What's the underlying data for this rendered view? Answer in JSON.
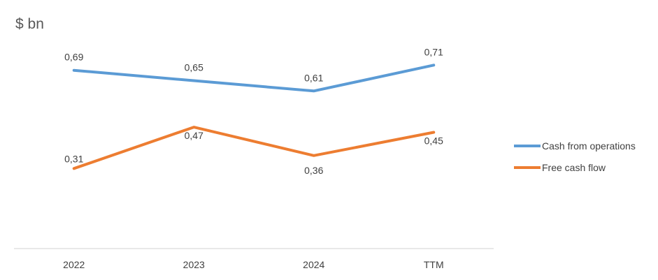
{
  "chart_data": {
    "type": "line",
    "unit_label": "$ bn",
    "categories": [
      "2022",
      "2023",
      "2024",
      "TTM"
    ],
    "series": [
      {
        "name": "Cash from operations",
        "color": "#5b9bd5",
        "values": [
          0.69,
          0.65,
          0.61,
          0.71
        ],
        "labels": [
          "0,69",
          "0,65",
          "0,61",
          "0,71"
        ]
      },
      {
        "name": "Free cash flow",
        "color": "#ed7d31",
        "values": [
          0.31,
          0.47,
          0.36,
          0.45
        ],
        "labels": [
          "0,31",
          "0,47",
          "0,36",
          "0,45"
        ]
      }
    ],
    "ylim": [
      0.0,
      0.8
    ],
    "grid": false,
    "legend": "right"
  }
}
